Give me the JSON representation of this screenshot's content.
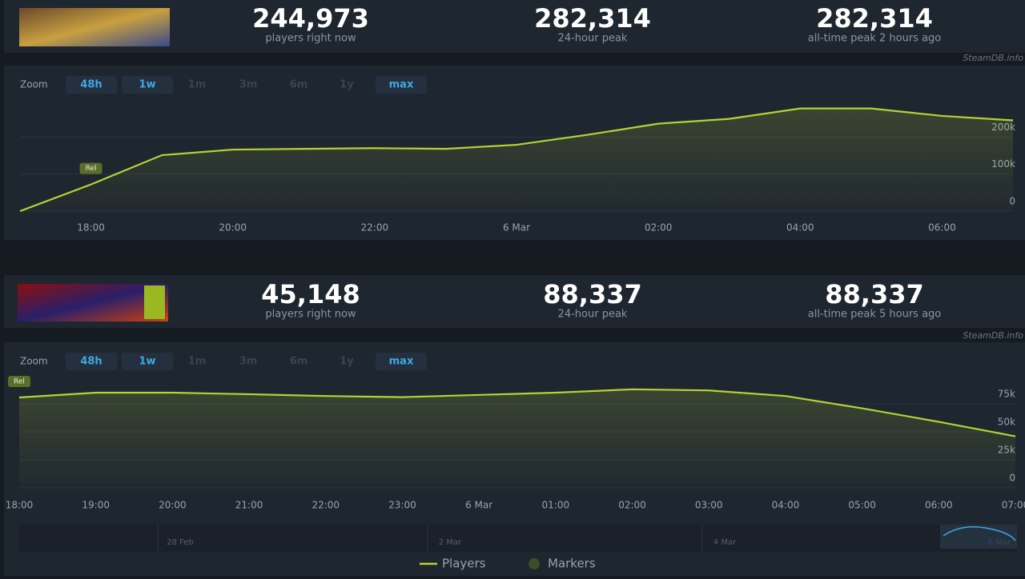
{
  "games": [
    {
      "stats": [
        {
          "value": "244,973",
          "label": "players right now"
        },
        {
          "value": "282,314",
          "label": "24-hour peak"
        },
        {
          "value": "282,314",
          "label": "all-time peak 2 hours ago"
        }
      ],
      "source": "SteamDB.info",
      "zoom": {
        "label": "Zoom",
        "options": [
          "48h",
          "1w",
          "1m",
          "3m",
          "6m",
          "1y",
          "max"
        ],
        "active": [
          true,
          true,
          false,
          false,
          false,
          false,
          true
        ]
      }
    },
    {
      "stats": [
        {
          "value": "45,148",
          "label": "players right now"
        },
        {
          "value": "88,337",
          "label": "24-hour peak"
        },
        {
          "value": "88,337",
          "label": "all-time peak 5 hours ago"
        }
      ],
      "source": "SteamDB.info",
      "zoom": {
        "label": "Zoom",
        "options": [
          "48h",
          "1w",
          "1m",
          "3m",
          "6m",
          "1y",
          "max"
        ],
        "active": [
          true,
          true,
          false,
          false,
          false,
          false,
          true
        ]
      }
    }
  ],
  "chart_data": [
    {
      "type": "line",
      "marker": "Rel",
      "categories": [
        null,
        "18:00",
        null,
        "20:00",
        null,
        "22:00",
        null,
        "6 Mar",
        null,
        "02:00",
        null,
        "04:00",
        null,
        "06:00",
        null
      ],
      "series": [
        {
          "name": "Players",
          "color": "#b5d334",
          "values": [
            0,
            72000,
            151000,
            166000,
            168000,
            170000,
            168000,
            179000,
            206000,
            236000,
            249000,
            277000,
            277000,
            257000,
            245000
          ]
        }
      ],
      "ylim": [
        0,
        300000
      ],
      "yticks": [
        0,
        {
          "value": 100000,
          "label": "100k"
        },
        {
          "value": 200000,
          "label": "200k"
        }
      ],
      "grid": true
    },
    {
      "type": "line",
      "marker": "Rel",
      "categories": [
        "18:00",
        "19:00",
        "20:00",
        "21:00",
        "22:00",
        "23:00",
        "6 Mar",
        "01:00",
        "02:00",
        "03:00",
        "04:00",
        "05:00",
        "06:00",
        "07:00"
      ],
      "series": [
        {
          "name": "Players",
          "color": "#b5d334",
          "values": [
            80700,
            85000,
            85000,
            83600,
            82000,
            81000,
            83000,
            85000,
            88000,
            87000,
            82000,
            71000,
            59000,
            46000
          ]
        }
      ],
      "marker_legend": "Markers",
      "navigator": [
        "28 Feb",
        "2 Mar",
        "4 Mar",
        "6 Mar"
      ],
      "ylim": [
        0,
        100000
      ],
      "yticks": [
        0,
        {
          "value": 25000,
          "label": "25k"
        },
        {
          "value": 50000,
          "label": "50k"
        },
        {
          "value": 75000,
          "label": "75k"
        }
      ],
      "grid": true
    }
  ]
}
